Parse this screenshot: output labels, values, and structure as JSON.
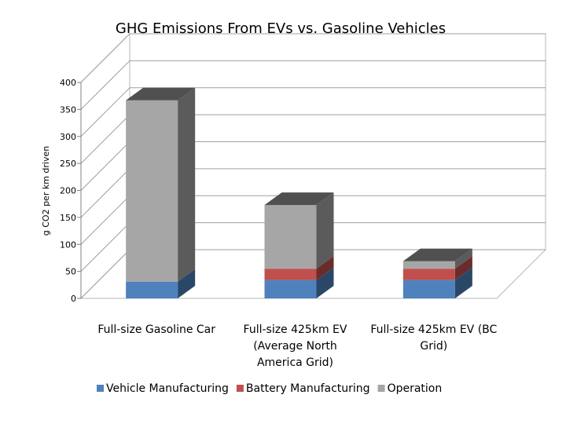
{
  "chart_data": {
    "type": "bar",
    "stacked": true,
    "three_d": true,
    "title": "GHG Emissions From EVs vs. Gasoline Vehicles",
    "xlabel": "",
    "ylabel": "g CO2 per km driven",
    "ylim": [
      0,
      400
    ],
    "yticks": [
      "0",
      "50",
      "100",
      "150",
      "200",
      "250",
      "300",
      "350",
      "400"
    ],
    "categories": [
      [
        "Full-size Gasoline Car"
      ],
      [
        "Full-size 425km EV",
        "(Average North",
        "America Grid)"
      ],
      [
        "Full-size 425km EV (BC",
        "Grid)"
      ]
    ],
    "series": [
      {
        "name": "Vehicle Manufacturing",
        "color": "#4f81bd",
        "values": [
          31,
          34,
          34
        ]
      },
      {
        "name": "Battery Manufacturing",
        "color": "#c0504d",
        "values": [
          0,
          21,
          21
        ]
      },
      {
        "name": "Operation",
        "color": "#a6a6a6",
        "values": [
          336,
          118,
          14
        ]
      }
    ],
    "grid": true,
    "legend": "bottom"
  }
}
